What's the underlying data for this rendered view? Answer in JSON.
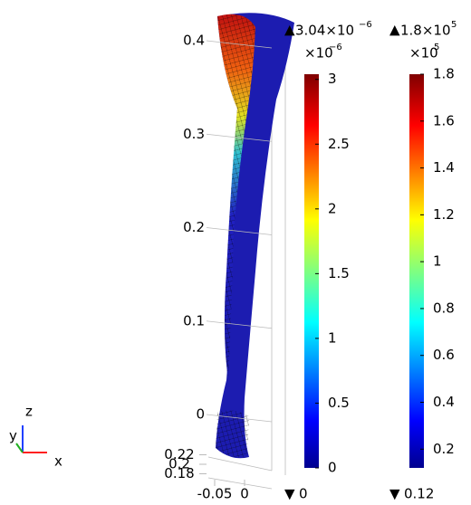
{
  "chart_data": {
    "type": "surface3d",
    "zticks": [
      0.4,
      0.3,
      0.2,
      0.1,
      0
    ],
    "yticks": [
      0.22,
      0.2,
      0.18
    ],
    "xticks": [
      -0.05,
      0
    ],
    "axis_labels": {
      "x": "x",
      "y": "y",
      "z": "z"
    },
    "colorbars": [
      {
        "max_label": "3.04×10",
        "max_exp": "−6",
        "scale_label": "×10",
        "scale_exp": "−6",
        "min_label": "0",
        "lim": [
          0,
          3.04
        ],
        "ticks": [
          3,
          2.5,
          2,
          1.5,
          1,
          0.5,
          0
        ]
      },
      {
        "max_label": "1.8×10",
        "max_exp": "5",
        "scale_label": "×10",
        "scale_exp": "5",
        "min_label": "0.12",
        "lim": [
          0.12,
          1.8
        ],
        "ticks": [
          1.8,
          1.6,
          1.4,
          1.2,
          1,
          0.8,
          0.6,
          0.4,
          0.2
        ]
      }
    ]
  }
}
